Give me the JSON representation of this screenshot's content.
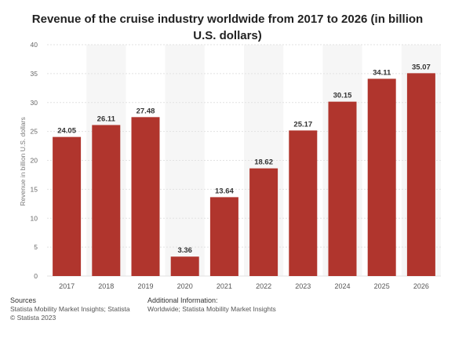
{
  "chart_data": {
    "type": "bar",
    "title": "Revenue of the cruise industry worldwide from 2017 to 2026 (in billion U.S. dollars)",
    "categories": [
      "2017",
      "2018",
      "2019",
      "2020",
      "2021",
      "2022",
      "2023",
      "2024",
      "2025",
      "2026"
    ],
    "values": [
      24.05,
      26.11,
      27.48,
      3.36,
      13.64,
      18.62,
      25.17,
      30.15,
      34.11,
      35.07
    ],
    "value_labels": [
      "24.05",
      "26.11",
      "27.48",
      "3.36",
      "13.64",
      "18.62",
      "25.17",
      "30.15",
      "34.11",
      "35.07"
    ],
    "ylabel": "Revenue in billion U.S. dollars",
    "xlabel": "",
    "ylim": [
      0,
      40
    ],
    "yticks": [
      0,
      5,
      10,
      15,
      20,
      25,
      30,
      35,
      40
    ],
    "grid": true,
    "bar_color": "#b0352d"
  },
  "footer": {
    "sources_heading": "Sources",
    "sources_line1": "Statista Mobility Market Insights; Statista",
    "sources_line2": "© Statista 2023",
    "additional_heading": "Additional Information:",
    "additional_line1": "Worldwide; Statista Mobility Market Insights"
  }
}
